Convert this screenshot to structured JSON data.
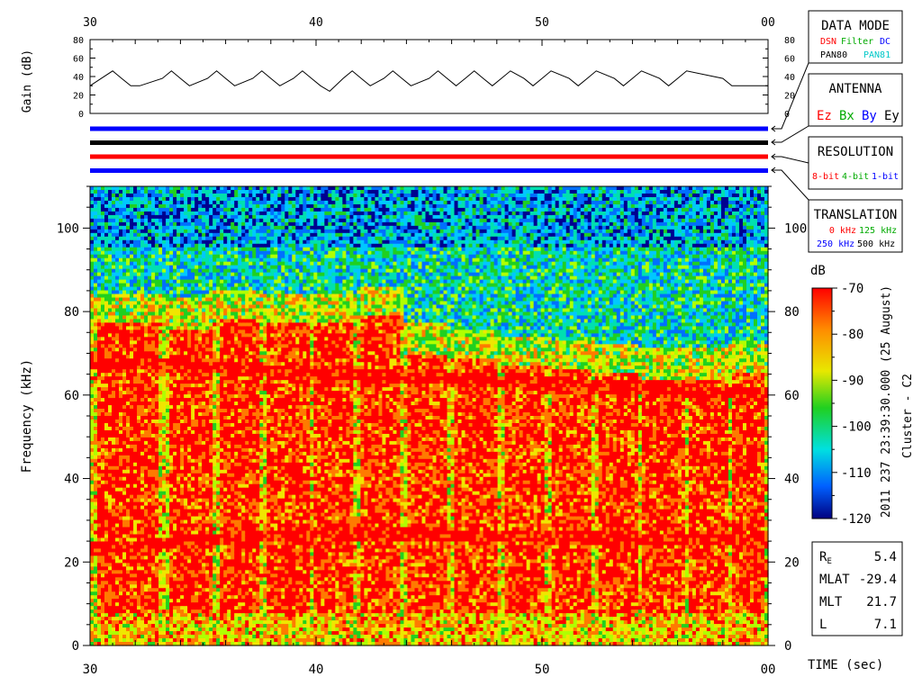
{
  "chart_data": [
    {
      "type": "line",
      "title": "",
      "ylabel": "Gain (dB)",
      "xlabel": "",
      "xlim": [
        30,
        60
      ],
      "ylim": [
        0,
        80
      ],
      "x_ticks": [
        "30",
        "40",
        "50",
        "00"
      ],
      "y_ticks": [
        "0",
        "20",
        "40",
        "60",
        "80"
      ],
      "series": [
        {
          "x": [
            30,
            30.5,
            31,
            31.4,
            31.8,
            32.2,
            33.2,
            33.6,
            34,
            34.4,
            35.2,
            35.6,
            36,
            36.4,
            37.2,
            37.6,
            38,
            38.4,
            39,
            39.4,
            39.8,
            40.2,
            40.6,
            41.2,
            41.6,
            42,
            42.4,
            43,
            43.4,
            43.8,
            44.2,
            45,
            45.4,
            45.8,
            46.2,
            46.6,
            47,
            47.4,
            47.8,
            48.2,
            48.6,
            49.2,
            49.6,
            50,
            50.4,
            51.2,
            51.6,
            52,
            52.4,
            53.2,
            53.6,
            54,
            54.4,
            55.2,
            55.6,
            56,
            56.4,
            58,
            58.4,
            60
          ],
          "y": [
            30,
            38,
            46,
            38,
            30,
            30,
            38,
            46,
            38,
            30,
            38,
            46,
            38,
            30,
            38,
            46,
            38,
            30,
            38,
            46,
            38,
            30,
            24,
            38,
            46,
            38,
            30,
            38,
            46,
            38,
            30,
            38,
            46,
            38,
            30,
            38,
            46,
            38,
            30,
            38,
            46,
            38,
            30,
            38,
            46,
            38,
            30,
            38,
            46,
            38,
            30,
            38,
            46,
            38,
            30,
            38,
            46,
            38,
            30,
            30
          ]
        }
      ]
    },
    {
      "type": "heatmap",
      "title": "",
      "xlabel": "TIME (sec)",
      "ylabel": "Frequency (kHz)",
      "xlim": [
        30,
        60
      ],
      "ylim": [
        0,
        110
      ],
      "x_ticks": [
        "30",
        "40",
        "50",
        "00"
      ],
      "y_ticks": [
        "0",
        "20",
        "40",
        "60",
        "80",
        "100"
      ],
      "colorbar": {
        "label": "dB",
        "range": [
          -120,
          -70
        ],
        "ticks": [
          "-70",
          "-80",
          "-90",
          "-100",
          "-110",
          "-120"
        ]
      },
      "bursts": [
        {
          "start": 30.0,
          "end": 33.3,
          "top": 80
        },
        {
          "start": 33.3,
          "end": 35.5,
          "top": 79
        },
        {
          "start": 35.5,
          "end": 37.6,
          "top": 81
        },
        {
          "start": 37.6,
          "end": 39.8,
          "top": 80
        },
        {
          "start": 39.8,
          "end": 41.8,
          "top": 80
        },
        {
          "start": 41.8,
          "end": 43.9,
          "top": 82
        },
        {
          "start": 43.9,
          "end": 46.0,
          "top": 73
        },
        {
          "start": 46.0,
          "end": 48.2,
          "top": 72
        },
        {
          "start": 48.2,
          "end": 50.2,
          "top": 70
        },
        {
          "start": 50.2,
          "end": 52.3,
          "top": 69
        },
        {
          "start": 52.3,
          "end": 54.3,
          "top": 68
        },
        {
          "start": 54.3,
          "end": 56.4,
          "top": 67
        },
        {
          "start": 56.4,
          "end": 58.3,
          "top": 67
        },
        {
          "start": 58.3,
          "end": 60.0,
          "top": 68
        }
      ],
      "bands": [
        {
          "name": "",
          "x": [
            30,
            40,
            60
          ],
          "y": [
            23,
            27,
            25
          ]
        },
        {
          "name": "",
          "x": [
            30,
            60
          ],
          "y": [
            68,
            60
          ]
        }
      ],
      "status_lines": [
        {
          "color": "#0000ff"
        },
        {
          "color": "#000000"
        },
        {
          "color": "#ff0000"
        },
        {
          "color": "#0000ff"
        }
      ]
    }
  ],
  "legend": {
    "data_mode": {
      "title": "DATA MODE",
      "items": [
        {
          "text": "DSN",
          "color": "#ff0000"
        },
        {
          "text": "Filter",
          "color": "#00aa00"
        },
        {
          "text": "DC",
          "color": "#0000ff"
        },
        {
          "text": "PAN80",
          "color": "#000000"
        },
        {
          "text": "PAN81",
          "color": "#00c8c8"
        }
      ]
    },
    "antenna": {
      "title": "ANTENNA",
      "items": [
        {
          "text": "Ez",
          "color": "#ff0000"
        },
        {
          "text": "Bx",
          "color": "#00aa00"
        },
        {
          "text": "By",
          "color": "#0000ff"
        },
        {
          "text": "Ey",
          "color": "#000000"
        }
      ]
    },
    "resolution": {
      "title": "RESOLUTION",
      "items": [
        {
          "text": "8-bit",
          "color": "#ff0000"
        },
        {
          "text": "4-bit",
          "color": "#00aa00"
        },
        {
          "text": "1-bit",
          "color": "#0000ff"
        }
      ]
    },
    "translation": {
      "title": "TRANSLATION",
      "items": [
        {
          "text": "0 kHz",
          "color": "#ff0000"
        },
        {
          "text": "125 kHz",
          "color": "#00aa00"
        },
        {
          "text": "250 kHz",
          "color": "#0000ff"
        },
        {
          "text": "500 kHz",
          "color": "#000000"
        }
      ]
    }
  },
  "info": {
    "side_label": "2011 237 23:39:30.000 (25 August)",
    "spacecraft": "Cluster - C2",
    "rows": [
      {
        "label": "R",
        "sub": "E",
        "value": "5.4"
      },
      {
        "label": "MLAT",
        "sub": "",
        "value": "-29.4"
      },
      {
        "label": "MLT",
        "sub": "",
        "value": "21.7"
      },
      {
        "label": "L",
        "sub": "",
        "value": "7.1"
      }
    ]
  }
}
